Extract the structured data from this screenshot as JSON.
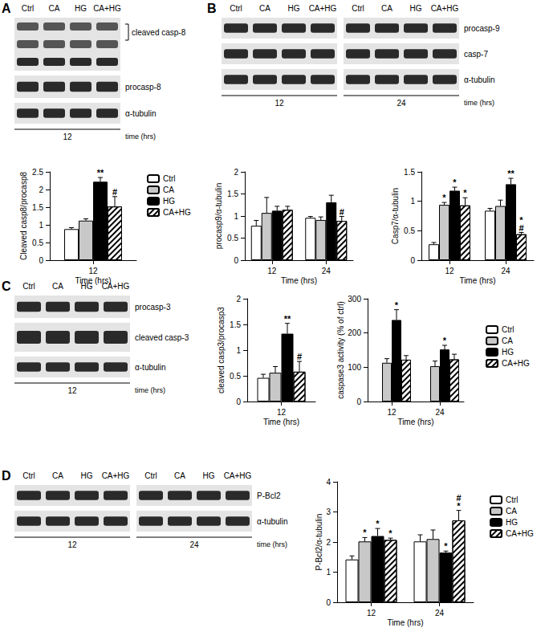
{
  "blots": [
    {
      "panel": "A",
      "lanes": [
        "Ctrl",
        "CA",
        "HG",
        "CA+HG"
      ],
      "times": [
        "12"
      ],
      "rows": [
        "cleaved casp-8",
        "procasp-8",
        "α-tubulin"
      ],
      "time_unit": "time (hrs)"
    },
    {
      "panel": "B",
      "lanes": [
        "Ctrl",
        "CA",
        "HG",
        "CA+HG"
      ],
      "times": [
        "12",
        "24"
      ],
      "rows": [
        "procasp-9",
        "casp-7",
        "α-tubulin"
      ],
      "time_unit": "time (hrs)"
    },
    {
      "panel": "C",
      "lanes": [
        "Ctrl",
        "CA",
        "HG",
        "CA+HG"
      ],
      "times": [
        "12"
      ],
      "rows": [
        "procasp-3",
        "cleaved casp-3",
        "α-tubulin"
      ],
      "time_unit": "time (hrs)"
    },
    {
      "panel": "D",
      "lanes": [
        "Ctrl",
        "CA",
        "HG",
        "CA+HG"
      ],
      "times": [
        "12",
        "24"
      ],
      "rows": [
        "P-Bcl2",
        "α-tubulin"
      ],
      "time_unit": "time (hrs)"
    }
  ],
  "chart_data": [
    {
      "type": "bar",
      "y_label": "Cleaved casp8/procasp8",
      "x_label": "Time (hrs)",
      "categories": [
        "12"
      ],
      "ylim": [
        0,
        2.5
      ],
      "yticks": [
        0,
        0.5,
        1,
        1.5,
        2,
        2.5
      ],
      "grid": false,
      "legend": "right",
      "series": [
        {
          "name": "Ctrl",
          "color": "#ffffff",
          "values": [
            0.88
          ],
          "errors": [
            0.04
          ],
          "annotations": [
            null
          ]
        },
        {
          "name": "CA",
          "color": "#c8c8c8",
          "values": [
            1.12
          ],
          "errors": [
            0.05
          ],
          "annotations": [
            null
          ]
        },
        {
          "name": "HG",
          "color": "#000000",
          "values": [
            2.22
          ],
          "errors": [
            0.12
          ],
          "annotations": [
            [
              "**"
            ]
          ]
        },
        {
          "name": "CA+HG",
          "color": "#ffffff",
          "values": [
            1.52
          ],
          "errors": [
            0.28
          ],
          "annotations": [
            [
              "#"
            ]
          ]
        }
      ]
    },
    {
      "type": "bar",
      "y_label": "procasp9/α-tubulin",
      "x_label": "Time (hrs)",
      "categories": [
        "12",
        "24"
      ],
      "ylim": [
        0,
        2
      ],
      "yticks": [
        0,
        0.5,
        1,
        1.5,
        2
      ],
      "grid": false,
      "series": [
        {
          "name": "Ctrl",
          "color": "#ffffff",
          "values": [
            0.78,
            0.96
          ],
          "errors": [
            0.12,
            0.03
          ],
          "annotations": [
            null,
            null
          ]
        },
        {
          "name": "CA",
          "color": "#c8c8c8",
          "values": [
            1.07,
            0.91
          ],
          "errors": [
            0.35,
            0.07
          ],
          "annotations": [
            null,
            null
          ]
        },
        {
          "name": "HG",
          "color": "#000000",
          "values": [
            1.12,
            1.31
          ],
          "errors": [
            0.1,
            0.16
          ],
          "annotations": [
            null,
            null
          ]
        },
        {
          "name": "CA+HG",
          "color": "#ffffff",
          "values": [
            1.14,
            0.89
          ],
          "errors": [
            0.08,
            0.1
          ],
          "annotations": [
            null,
            [
              "#"
            ]
          ]
        }
      ]
    },
    {
      "type": "bar",
      "y_label": "Casp7/α-tubulin",
      "x_label": "Time (hrs)",
      "categories": [
        "12",
        "24"
      ],
      "ylim": [
        0,
        1.5
      ],
      "yticks": [
        0,
        0.5,
        1,
        1.5
      ],
      "grid": false,
      "series": [
        {
          "name": "Ctrl",
          "color": "#ffffff",
          "values": [
            0.27,
            0.84
          ],
          "errors": [
            0.03,
            0.04
          ],
          "annotations": [
            null,
            null
          ]
        },
        {
          "name": "CA",
          "color": "#c8c8c8",
          "values": [
            0.94,
            0.92
          ],
          "errors": [
            0.04,
            0.1
          ],
          "annotations": [
            [
              "*"
            ],
            null
          ]
        },
        {
          "name": "HG",
          "color": "#000000",
          "values": [
            1.18,
            1.29
          ],
          "errors": [
            0.06,
            0.1
          ],
          "annotations": [
            [
              "*"
            ],
            [
              "**"
            ]
          ]
        },
        {
          "name": "CA+HG",
          "color": "#ffffff",
          "values": [
            0.93,
            0.44
          ],
          "errors": [
            0.13,
            0.03
          ],
          "annotations": [
            [
              "*"
            ],
            [
              "*",
              "#"
            ]
          ]
        }
      ]
    },
    {
      "type": "bar",
      "y_label": "cleaved casp3/procasp3",
      "x_label": "Time (hrs)",
      "categories": [
        "12"
      ],
      "ylim": [
        0,
        2
      ],
      "yticks": [
        0,
        0.5,
        1,
        1.5,
        2
      ],
      "grid": false,
      "series": [
        {
          "name": "Ctrl",
          "color": "#ffffff",
          "values": [
            0.46
          ],
          "errors": [
            0.07
          ],
          "annotations": [
            null
          ]
        },
        {
          "name": "CA",
          "color": "#c8c8c8",
          "values": [
            0.56
          ],
          "errors": [
            0.12
          ],
          "annotations": [
            null
          ]
        },
        {
          "name": "HG",
          "color": "#000000",
          "values": [
            1.32
          ],
          "errors": [
            0.2
          ],
          "annotations": [
            [
              "**"
            ]
          ]
        },
        {
          "name": "CA+HG",
          "color": "#ffffff",
          "values": [
            0.58
          ],
          "errors": [
            0.2
          ],
          "annotations": [
            [
              "#"
            ]
          ]
        }
      ]
    },
    {
      "type": "bar",
      "y_label": "caspase3 activity (% of ctrl)",
      "x_label": "Time (hrs)",
      "categories": [
        "12",
        "24"
      ],
      "ylim": [
        0,
        300
      ],
      "yticks": [
        0,
        100,
        200,
        300
      ],
      "grid": false,
      "legend": "right",
      "series": [
        {
          "name": "Ctrl",
          "color": "#ffffff",
          "values": [
            null,
            null
          ],
          "errors": [
            null,
            null
          ],
          "annotations": [
            null,
            null
          ]
        },
        {
          "name": "CA",
          "color": "#c8c8c8",
          "values": [
            113,
            103
          ],
          "errors": [
            12,
            15
          ],
          "annotations": [
            null,
            null
          ]
        },
        {
          "name": "HG",
          "color": "#000000",
          "values": [
            238,
            152
          ],
          "errors": [
            30,
            12
          ],
          "annotations": [
            [
              "*"
            ],
            [
              "*"
            ]
          ]
        },
        {
          "name": "CA+HG",
          "color": "#ffffff",
          "values": [
            122,
            123
          ],
          "errors": [
            12,
            15
          ],
          "annotations": [
            null,
            null
          ]
        }
      ]
    },
    {
      "type": "bar",
      "y_label": "P-Bcl2/α-tubulin",
      "x_label": "Time (hrs)",
      "categories": [
        "12",
        "24"
      ],
      "ylim": [
        0,
        4
      ],
      "yticks": [
        0,
        1,
        2,
        3,
        4
      ],
      "grid": false,
      "legend": "right",
      "series": [
        {
          "name": "Ctrl",
          "color": "#ffffff",
          "values": [
            1.42,
            2.02
          ],
          "errors": [
            0.12,
            0.22
          ],
          "annotations": [
            null,
            null
          ]
        },
        {
          "name": "CA",
          "color": "#c8c8c8",
          "values": [
            2.02,
            2.1
          ],
          "errors": [
            0.13,
            0.3
          ],
          "annotations": [
            [
              "*"
            ],
            null
          ]
        },
        {
          "name": "HG",
          "color": "#000000",
          "values": [
            2.2,
            1.65
          ],
          "errors": [
            0.25,
            0.05
          ],
          "annotations": [
            [
              "*"
            ],
            [
              "*"
            ]
          ]
        },
        {
          "name": "CA+HG",
          "color": "#ffffff",
          "values": [
            2.07,
            2.72
          ],
          "errors": [
            0.06,
            0.33
          ],
          "annotations": [
            [
              "*"
            ],
            [
              "#",
              "*"
            ]
          ]
        }
      ]
    }
  ]
}
